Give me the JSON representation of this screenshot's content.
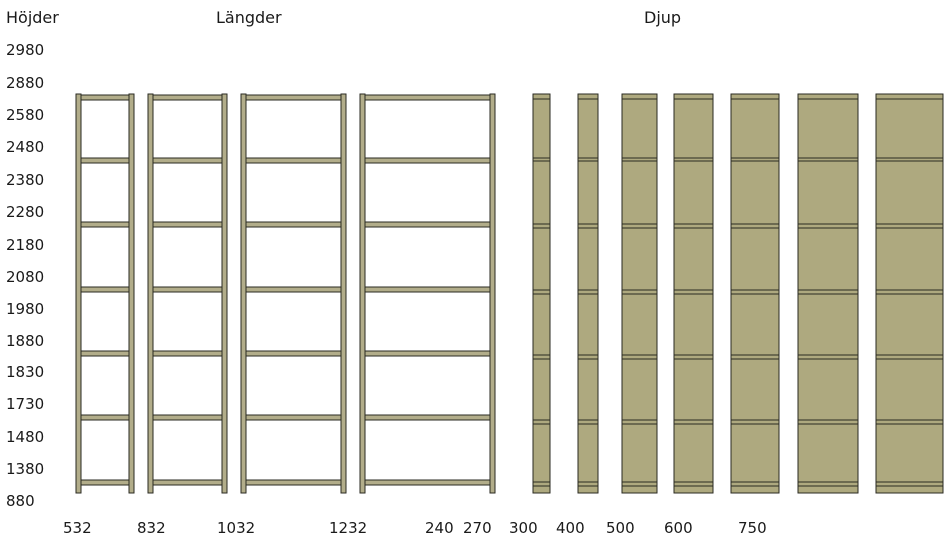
{
  "headers": {
    "heights": "Höjder",
    "lengths": "Längder",
    "depths": "Djup"
  },
  "height_labels": [
    "2980",
    "2880",
    "2580",
    "2480",
    "2380",
    "2280",
    "2180",
    "2080",
    "1980",
    "1880",
    "1830",
    "1730",
    "1480",
    "1380",
    "880"
  ],
  "bottom_labels": [
    "532",
    "832",
    "1032",
    "1232",
    "240",
    "270",
    "300",
    "400",
    "500",
    "600",
    "750"
  ],
  "colors": {
    "post": "#b2ad8a",
    "panel": "#aea97f",
    "stroke": "#2a2a22"
  }
}
